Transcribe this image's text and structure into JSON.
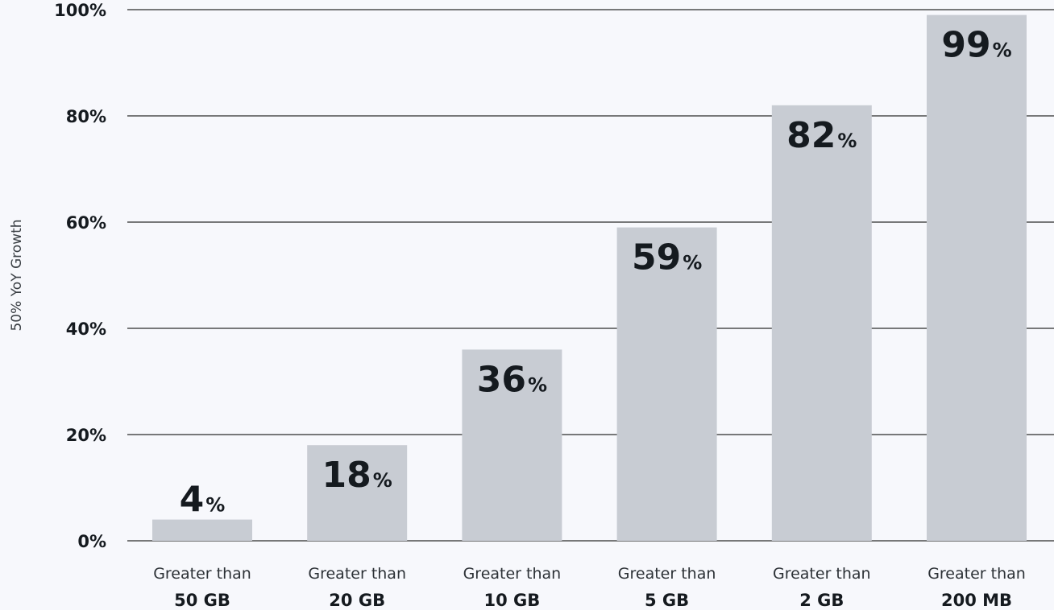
{
  "chart_data": {
    "type": "bar",
    "categories": [
      {
        "line1": "Greater than",
        "line2": "50 GB"
      },
      {
        "line1": "Greater than",
        "line2": "20 GB"
      },
      {
        "line1": "Greater than",
        "line2": "10 GB"
      },
      {
        "line1": "Greater than",
        "line2": "5 GB"
      },
      {
        "line1": "Greater than",
        "line2": "2 GB"
      },
      {
        "line1": "Greater than",
        "line2": "200 MB"
      }
    ],
    "values": [
      4,
      18,
      36,
      59,
      82,
      99
    ],
    "value_suffix": "%",
    "ylabel": "50% YoY Growth",
    "ylim": [
      0,
      100
    ],
    "yticks": [
      0,
      20,
      40,
      60,
      80,
      100
    ],
    "ytick_labels": [
      "0%",
      "20%",
      "40%",
      "60%",
      "80%",
      "100%"
    ],
    "grid": true,
    "colors": {
      "bar": "#c8ccd3",
      "grid": "#2b2b2b",
      "text": "#151a1f",
      "background": "#f7f8fc"
    }
  }
}
